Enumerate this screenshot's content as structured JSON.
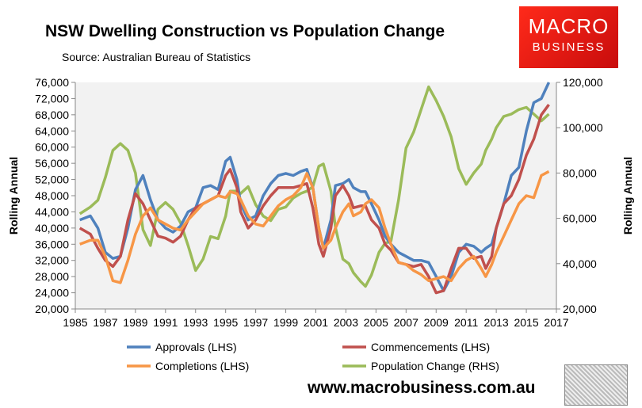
{
  "header": {
    "title": "NSW Dwelling Construction vs Population Change",
    "source": "Source: Australian Bureau of Statistics",
    "logo_line1": "MACRO",
    "logo_line2": "BUSINESS",
    "url": "www.macrobusiness.com.au"
  },
  "chart_data": {
    "type": "line",
    "title": "NSW Dwelling Construction vs Population Change",
    "ylabel": "Rolling Annual",
    "y2label": "Rolling Annual",
    "ylim": [
      20000,
      76000
    ],
    "y2lim": [
      20000,
      120000
    ],
    "xlim": [
      1985,
      2017
    ],
    "yticks": [
      "20,000",
      "24,000",
      "28,000",
      "32,000",
      "36,000",
      "40,000",
      "44,000",
      "48,000",
      "52,000",
      "56,000",
      "60,000",
      "64,000",
      "68,000",
      "72,000",
      "76,000"
    ],
    "y2ticks": [
      "20,000",
      "40,000",
      "60,000",
      "80,000",
      "100,000",
      "120,000"
    ],
    "xticks": [
      "1985",
      "1987",
      "1989",
      "1991",
      "1993",
      "1995",
      "1997",
      "1999",
      "2001",
      "2003",
      "2005",
      "2007",
      "2009",
      "2011",
      "2013",
      "2015",
      "2017"
    ],
    "grid": false,
    "legend": "bottom",
    "x": [
      1985.3,
      1986,
      1986.5,
      1987,
      1987.5,
      1988,
      1988.5,
      1989,
      1989.5,
      1990,
      1990.5,
      1991,
      1991.5,
      1992,
      1992.5,
      1993,
      1993.5,
      1994,
      1994.5,
      1995,
      1995.3,
      1995.75,
      1996,
      1996.5,
      1997,
      1997.5,
      1998,
      1998.5,
      1999,
      1999.5,
      2000,
      2000.4,
      2000.8,
      2001.2,
      2001.5,
      2002,
      2002.3,
      2002.8,
      2003.2,
      2003.5,
      2004,
      2004.3,
      2004.7,
      2005.2,
      2005.6,
      2006,
      2006.5,
      2007,
      2007.5,
      2008,
      2008.5,
      2009,
      2009.5,
      2010,
      2010.5,
      2011,
      2011.5,
      2012,
      2012.3,
      2012.7,
      2013,
      2013.5,
      2014,
      2014.5,
      2015,
      2015.5,
      2016,
      2016.5
    ],
    "series": [
      {
        "name": "Approvals (LHS)",
        "axis": "left",
        "color": "#4f81bd",
        "values": [
          42000,
          43000,
          40000,
          34000,
          32500,
          33000,
          40000,
          49500,
          53000,
          47000,
          42000,
          40000,
          39000,
          40500,
          44000,
          45000,
          50000,
          50500,
          49500,
          56500,
          57500,
          52000,
          46000,
          42000,
          43000,
          48000,
          51000,
          53000,
          53500,
          53000,
          54000,
          54500,
          50000,
          40000,
          35000,
          42000,
          50500,
          51000,
          52000,
          50000,
          49000,
          49000,
          46000,
          42000,
          38000,
          36000,
          34000,
          33000,
          32000,
          32000,
          31500,
          28000,
          24500,
          28000,
          34000,
          36000,
          35500,
          34000,
          35000,
          36000,
          40000,
          46000,
          53000,
          55000,
          64000,
          71000,
          72000,
          76000
        ]
      },
      {
        "name": "Commencements (LHS)",
        "axis": "left",
        "color": "#c0504d",
        "values": [
          40000,
          38500,
          35000,
          32000,
          30500,
          33000,
          42000,
          48500,
          46000,
          42000,
          38000,
          37500,
          36500,
          38000,
          42000,
          45000,
          46000,
          47000,
          48000,
          53000,
          54500,
          50000,
          44000,
          40000,
          42000,
          45500,
          48000,
          50000,
          50000,
          50000,
          50500,
          51000,
          45000,
          36000,
          33000,
          40000,
          48000,
          50500,
          48000,
          45000,
          45500,
          45500,
          42000,
          40000,
          36000,
          34500,
          31500,
          31000,
          30500,
          31000,
          28000,
          24000,
          24500,
          30000,
          35000,
          35000,
          32500,
          33000,
          30000,
          33000,
          40000,
          46000,
          48000,
          52000,
          58000,
          62000,
          68000,
          70500
        ]
      },
      {
        "name": "Completions (LHS)",
        "axis": "left",
        "color": "#f79646",
        "values": [
          36000,
          37000,
          37000,
          33000,
          27000,
          26500,
          32000,
          38500,
          43000,
          45000,
          42000,
          41000,
          40000,
          39500,
          42000,
          44000,
          46000,
          47000,
          48000,
          47500,
          49000,
          48500,
          47000,
          43000,
          41000,
          40500,
          43000,
          45500,
          47000,
          48000,
          50000,
          53500,
          50000,
          40000,
          35000,
          37000,
          40000,
          44000,
          46000,
          43000,
          44000,
          46000,
          47000,
          45000,
          40000,
          36000,
          31500,
          31000,
          29500,
          28500,
          27000,
          27500,
          28000,
          27000,
          30000,
          32000,
          33000,
          30000,
          28000,
          31000,
          34000,
          38000,
          42000,
          46000,
          48000,
          47500,
          53000,
          54000
        ]
      },
      {
        "name": "Population Change (RHS)",
        "axis": "right",
        "color": "#9bbb59",
        "values": [
          62000,
          65000,
          68000,
          78000,
          90000,
          93000,
          90000,
          80000,
          55000,
          48000,
          64000,
          67000,
          64000,
          58000,
          48000,
          37000,
          42000,
          52000,
          51000,
          61000,
          72000,
          72000,
          71000,
          74000,
          66000,
          61000,
          59000,
          64000,
          65000,
          69000,
          71000,
          72000,
          74000,
          83000,
          84000,
          72000,
          56000,
          42000,
          40000,
          36000,
          32000,
          30000,
          35000,
          45000,
          49000,
          50000,
          68000,
          91000,
          98000,
          108000,
          118000,
          112000,
          105000,
          96000,
          82000,
          75000,
          80000,
          84000,
          90000,
          95000,
          100000,
          105000,
          106000,
          108000,
          109000,
          106000,
          103000,
          106000
        ]
      }
    ]
  }
}
